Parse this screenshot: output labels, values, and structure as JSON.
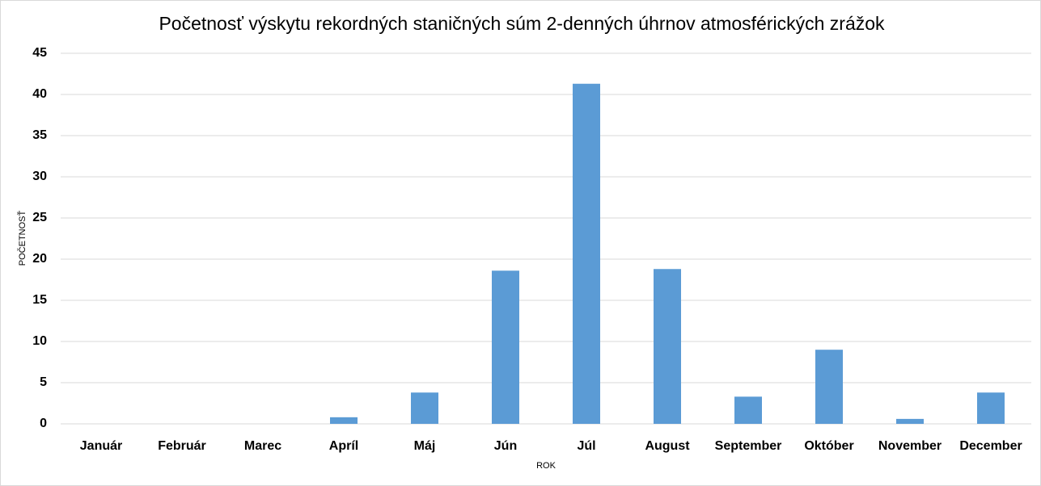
{
  "chart_data": {
    "type": "bar",
    "title": "Početnosť výskytu rekordných staničných súm 2-denných úhrnov atmosférických zrážok",
    "x_label": "ROK",
    "y_label": "POČETNOSŤ",
    "categories": [
      "Január",
      "Február",
      "Marec",
      "Apríl",
      "Máj",
      "Jún",
      "Júl",
      "August",
      "September",
      "Október",
      "November",
      "December"
    ],
    "values": [
      0,
      0,
      0,
      0.8,
      3.8,
      18.6,
      41.3,
      18.8,
      3.3,
      9,
      0.6,
      3.8
    ],
    "color": "#5b9bd5",
    "ylim": [
      0,
      45
    ],
    "yticks": [
      0,
      5,
      10,
      15,
      20,
      25,
      30,
      35,
      40,
      45
    ],
    "grid": true
  }
}
